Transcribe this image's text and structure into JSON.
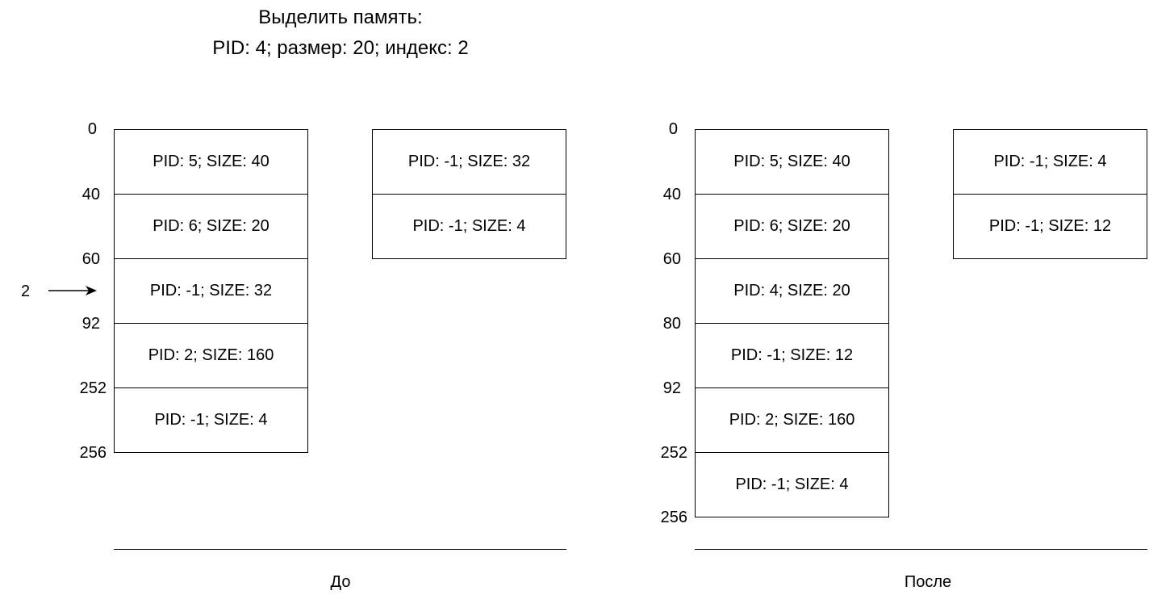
{
  "title": {
    "line1": "Выделить память:",
    "line2": "PID: 4; размер: 20; индекс: 2"
  },
  "before": {
    "caption": "До",
    "memory_blocks": [
      "PID: 5; SIZE: 40",
      "PID: 6; SIZE: 20",
      "PID: -1; SIZE: 32",
      "PID: 2; SIZE: 160",
      "PID: -1; SIZE: 4"
    ],
    "addresses": [
      "0",
      "40",
      "60",
      "92",
      "252",
      "256"
    ],
    "free_list": [
      "PID: -1; SIZE: 32",
      "PID: -1; SIZE: 4"
    ],
    "index_pointer": "2"
  },
  "after": {
    "caption": "После",
    "memory_blocks": [
      "PID: 5; SIZE: 40",
      "PID: 6; SIZE: 20",
      "PID: 4; SIZE: 20",
      "PID: -1; SIZE: 12",
      "PID: 2; SIZE: 160",
      "PID: -1; SIZE: 4"
    ],
    "addresses": [
      "0",
      "40",
      "60",
      "80",
      "92",
      "252",
      "256"
    ],
    "free_list": [
      "PID: -1; SIZE: 4",
      "PID: -1; SIZE: 12"
    ]
  }
}
